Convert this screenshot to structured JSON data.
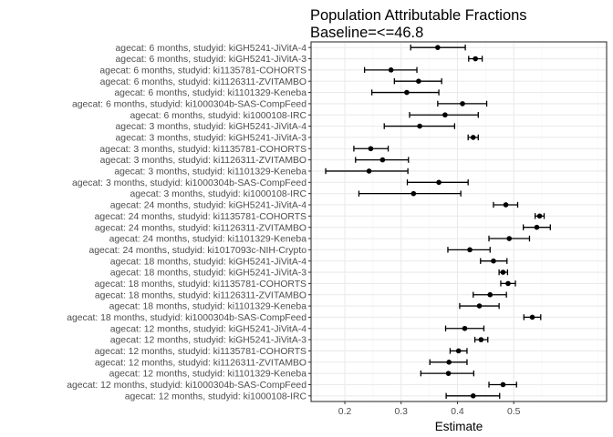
{
  "chart_data": {
    "type": "scatter",
    "title": "Population Attributable Fractions",
    "subtitle": "Baseline=<=46.8",
    "xlabel": "Estimate",
    "ylabel": "",
    "xlim": [
      0.14,
      0.665
    ],
    "xticks": [
      "0.2",
      "0.3",
      "0.4",
      "0.5"
    ],
    "grid": true,
    "legend": "none",
    "colors": {
      "point": "#000000",
      "errorbar": "#000000",
      "grid_major": "#ebebeb",
      "grid_minor": "#f5f5f5",
      "panel_border": "#333333"
    },
    "categories": [
      "agecat: 6 months, studyid: kiGH5241-JiVitA-4",
      "agecat: 6 months, studyid: kiGH5241-JiVitA-3",
      "agecat: 6 months, studyid: ki1135781-COHORTS",
      "agecat: 6 months, studyid: ki1126311-ZVITAMBO",
      "agecat: 6 months, studyid: ki1101329-Keneba",
      "agecat: 6 months, studyid: ki1000304b-SAS-CompFeed",
      "agecat: 6 months, studyid: ki1000108-IRC",
      "agecat: 3 months, studyid: kiGH5241-JiVitA-4",
      "agecat: 3 months, studyid: kiGH5241-JiVitA-3",
      "agecat: 3 months, studyid: ki1135781-COHORTS",
      "agecat: 3 months, studyid: ki1126311-ZVITAMBO",
      "agecat: 3 months, studyid: ki1101329-Keneba",
      "agecat: 3 months, studyid: ki1000304b-SAS-CompFeed",
      "agecat: 3 months, studyid: ki1000108-IRC",
      "agecat: 24 months, studyid: kiGH5241-JiVitA-4",
      "agecat: 24 months, studyid: ki1135781-COHORTS",
      "agecat: 24 months, studyid: ki1126311-ZVITAMBO",
      "agecat: 24 months, studyid: ki1101329-Keneba",
      "agecat: 24 months, studyid: ki1017093c-NIH-Crypto",
      "agecat: 18 months, studyid: kiGH5241-JiVitA-4",
      "agecat: 18 months, studyid: kiGH5241-JiVitA-3",
      "agecat: 18 months, studyid: ki1135781-COHORTS",
      "agecat: 18 months, studyid: ki1126311-ZVITAMBO",
      "agecat: 18 months, studyid: ki1101329-Keneba",
      "agecat: 18 months, studyid: ki1000304b-SAS-CompFeed",
      "agecat: 12 months, studyid: kiGH5241-JiVitA-4",
      "agecat: 12 months, studyid: kiGH5241-JiVitA-3",
      "agecat: 12 months, studyid: ki1135781-COHORTS",
      "agecat: 12 months, studyid: ki1126311-ZVITAMBO",
      "agecat: 12 months, studyid: ki1101329-Keneba",
      "agecat: 12 months, studyid: ki1000304b-SAS-CompFeed",
      "agecat: 12 months, studyid: ki1000108-IRC"
    ],
    "estimate": [
      0.365,
      0.432,
      0.282,
      0.331,
      0.31,
      0.409,
      0.378,
      0.333,
      0.428,
      0.246,
      0.267,
      0.243,
      0.367,
      0.322,
      0.486,
      0.546,
      0.541,
      0.492,
      0.422,
      0.464,
      0.481,
      0.49,
      0.458,
      0.439,
      0.533,
      0.413,
      0.442,
      0.402,
      0.385,
      0.384,
      0.481,
      0.428
    ],
    "lower": [
      0.317,
      0.42,
      0.235,
      0.288,
      0.248,
      0.365,
      0.315,
      0.27,
      0.419,
      0.216,
      0.219,
      0.166,
      0.311,
      0.225,
      0.464,
      0.538,
      0.517,
      0.456,
      0.383,
      0.441,
      0.474,
      0.477,
      0.428,
      0.404,
      0.518,
      0.379,
      0.431,
      0.387,
      0.351,
      0.335,
      0.456,
      0.38
    ],
    "upper": [
      0.414,
      0.444,
      0.328,
      0.372,
      0.367,
      0.452,
      0.437,
      0.395,
      0.437,
      0.277,
      0.313,
      0.312,
      0.419,
      0.406,
      0.507,
      0.554,
      0.565,
      0.528,
      0.458,
      0.488,
      0.489,
      0.503,
      0.487,
      0.474,
      0.548,
      0.447,
      0.454,
      0.417,
      0.417,
      0.429,
      0.505,
      0.475
    ]
  }
}
